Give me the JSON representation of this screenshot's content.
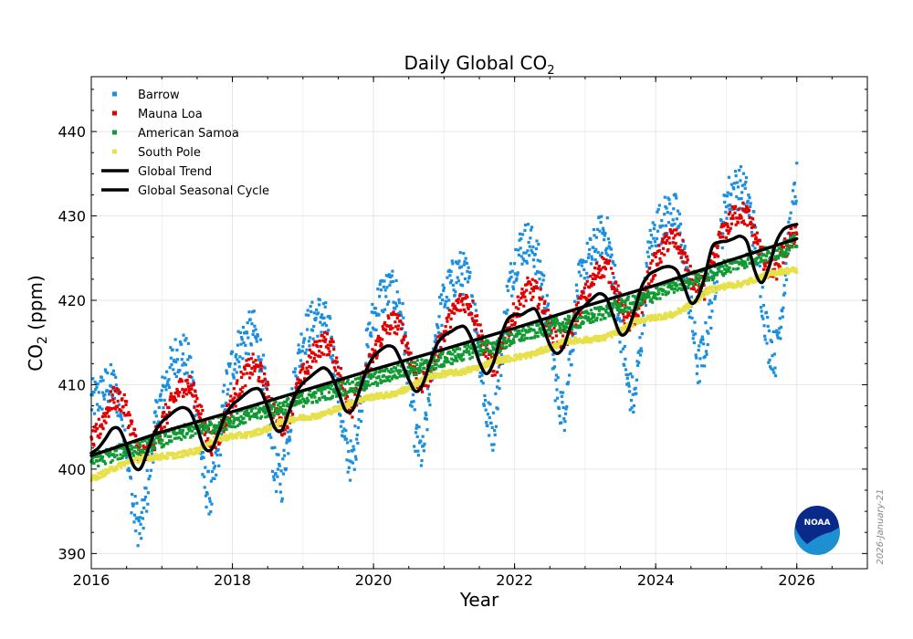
{
  "chart_data": {
    "type": "scatter",
    "title": "Daily Global CO",
    "title_subscript": "2",
    "xlabel": "Year",
    "ylabel_prefix": "CO",
    "ylabel_subscript": "2",
    "ylabel_suffix": " (ppm)",
    "xlim": [
      2016,
      2027
    ],
    "ylim": [
      388.2,
      446.5
    ],
    "xticks": [
      2016,
      2018,
      2020,
      2022,
      2024,
      2026
    ],
    "xtick_labels": [
      "2016",
      "2018",
      "2020",
      "2022",
      "2024",
      "2026"
    ],
    "yticks": [
      390,
      400,
      410,
      420,
      430,
      440
    ],
    "ytick_labels": [
      "390",
      "400",
      "410",
      "420",
      "430",
      "440"
    ],
    "grid": true,
    "legend_position": "top-left",
    "series": [
      {
        "name": "Barrow",
        "kind": "daily-points",
        "color": "#1a8fe0",
        "x": [
          2016.0,
          2016.1,
          2016.2,
          2016.3,
          2016.4,
          2016.5,
          2016.6,
          2016.7,
          2016.8,
          2016.9,
          2017.0,
          2017.1,
          2017.2,
          2017.3,
          2017.4,
          2017.5,
          2017.6,
          2017.7,
          2017.8,
          2017.9,
          2018.0,
          2018.1,
          2018.2,
          2018.3,
          2018.4,
          2018.5,
          2018.6,
          2018.7,
          2018.8,
          2018.9,
          2019.0,
          2019.1,
          2019.2,
          2019.3,
          2019.4,
          2019.5,
          2019.6,
          2019.7,
          2019.8,
          2019.9,
          2020.0,
          2020.1,
          2020.2,
          2020.3,
          2020.4,
          2020.5,
          2020.6,
          2020.7,
          2020.8,
          2020.9,
          2021.0,
          2021.1,
          2021.2,
          2021.3,
          2021.4,
          2021.5,
          2021.6,
          2021.7,
          2021.8,
          2021.9,
          2022.0,
          2022.1,
          2022.2,
          2022.3,
          2022.4,
          2022.5,
          2022.6,
          2022.7,
          2022.8,
          2022.9,
          2023.0,
          2023.1,
          2023.2,
          2023.3,
          2023.4,
          2023.5,
          2023.6,
          2023.7,
          2023.8,
          2023.9,
          2024.0,
          2024.1,
          2024.2,
          2024.3,
          2024.4,
          2024.5,
          2024.6,
          2024.7,
          2024.8,
          2024.9,
          2025.0,
          2025.1,
          2025.2,
          2025.3,
          2025.4,
          2025.5,
          2025.6,
          2025.7,
          2025.8,
          2025.9,
          2026.0
        ],
        "y": [
          408.0,
          408.6,
          409.6,
          410.0,
          408.0,
          402.5,
          395.0,
          392.5,
          398.0,
          405.0,
          408.5,
          411.5,
          413.5,
          413.8,
          412.0,
          406.5,
          398.5,
          396.5,
          402.0,
          409.0,
          412.5,
          414.5,
          415.8,
          416.5,
          413.5,
          407.0,
          400.0,
          398.5,
          404.5,
          411.5,
          415.5,
          417.0,
          418.2,
          418.0,
          415.0,
          409.0,
          402.5,
          400.5,
          406.5,
          414.0,
          418.0,
          420.5,
          421.0,
          420.8,
          418.5,
          411.0,
          403.5,
          401.5,
          409.5,
          417.0,
          420.0,
          422.0,
          423.5,
          423.0,
          420.5,
          414.0,
          406.5,
          404.5,
          412.5,
          420.5,
          424.5,
          426.5,
          427.0,
          425.5,
          422.0,
          416.0,
          409.0,
          406.5,
          414.0,
          421.5,
          424.0,
          425.5,
          427.5,
          428.0,
          423.5,
          417.0,
          410.0,
          408.0,
          416.0,
          425.5,
          428.5,
          429.5,
          430.5,
          430.0,
          425.5,
          418.5,
          412.0,
          414.5,
          420.0,
          426.0,
          432.0,
          433.0,
          433.5,
          432.0,
          428.0,
          421.0,
          415.0,
          413.5,
          420.0,
          428.0,
          434.0
        ]
      },
      {
        "name": "Mauna Loa",
        "kind": "daily-points",
        "color": "#e00000",
        "x": [
          2016.0,
          2016.1,
          2016.2,
          2016.3,
          2016.4,
          2016.5,
          2016.6,
          2016.7,
          2016.8,
          2016.9,
          2017.0,
          2017.1,
          2017.2,
          2017.3,
          2017.4,
          2017.5,
          2017.6,
          2017.7,
          2017.8,
          2017.9,
          2018.0,
          2018.1,
          2018.2,
          2018.3,
          2018.4,
          2018.5,
          2018.6,
          2018.7,
          2018.8,
          2018.9,
          2019.0,
          2019.1,
          2019.2,
          2019.3,
          2019.4,
          2019.5,
          2019.6,
          2019.7,
          2019.8,
          2019.9,
          2020.0,
          2020.1,
          2020.2,
          2020.3,
          2020.4,
          2020.5,
          2020.6,
          2020.7,
          2020.8,
          2020.9,
          2021.0,
          2021.1,
          2021.2,
          2021.3,
          2021.4,
          2021.5,
          2021.6,
          2021.7,
          2021.8,
          2021.9,
          2022.0,
          2022.1,
          2022.2,
          2022.3,
          2022.4,
          2022.5,
          2022.6,
          2022.7,
          2022.8,
          2022.9,
          2023.0,
          2023.1,
          2023.2,
          2023.3,
          2023.4,
          2023.5,
          2023.6,
          2023.7,
          2023.8,
          2023.9,
          2024.0,
          2024.1,
          2024.2,
          2024.3,
          2024.4,
          2024.5,
          2024.6,
          2024.7,
          2024.8,
          2024.9,
          2025.0,
          2025.1,
          2025.2,
          2025.3,
          2025.4,
          2025.5,
          2025.6,
          2025.7,
          2025.8,
          2025.9,
          2026.0
        ],
        "y": [
          402.8,
          404.5,
          406.5,
          408.3,
          408.3,
          407.0,
          404.0,
          401.5,
          401.8,
          403.5,
          405.5,
          407.0,
          408.8,
          410.0,
          409.8,
          408.0,
          405.0,
          403.0,
          403.8,
          406.0,
          408.0,
          409.8,
          411.5,
          412.3,
          411.3,
          409.0,
          406.5,
          405.0,
          406.5,
          409.0,
          411.0,
          412.8,
          414.3,
          415.0,
          414.5,
          412.0,
          409.0,
          407.5,
          409.0,
          411.5,
          413.5,
          415.5,
          417.0,
          417.5,
          416.5,
          414.0,
          411.0,
          410.0,
          411.5,
          414.0,
          416.0,
          418.0,
          419.5,
          420.0,
          419.0,
          416.5,
          413.5,
          412.0,
          413.5,
          416.5,
          418.5,
          420.0,
          421.5,
          421.0,
          419.5,
          417.0,
          415.5,
          415.5,
          416.5,
          419.0,
          420.5,
          422.0,
          424.0,
          424.0,
          422.5,
          419.5,
          417.5,
          417.5,
          419.5,
          422.5,
          424.5,
          426.0,
          427.5,
          427.0,
          425.5,
          422.5,
          421.5,
          421.5,
          424.0,
          427.0,
          428.5,
          430.0,
          430.5,
          430.0,
          428.0,
          425.5,
          423.5,
          423.5,
          425.5,
          427.0,
          428.5
        ]
      },
      {
        "name": "American Samoa",
        "kind": "daily-points",
        "color": "#119933",
        "x": [
          2016.0,
          2016.25,
          2016.5,
          2016.75,
          2017.0,
          2017.25,
          2017.5,
          2017.75,
          2018.0,
          2018.25,
          2018.5,
          2018.75,
          2019.0,
          2019.25,
          2019.5,
          2019.75,
          2020.0,
          2020.25,
          2020.5,
          2020.75,
          2021.0,
          2021.25,
          2021.5,
          2021.75,
          2022.0,
          2022.25,
          2022.5,
          2022.75,
          2023.0,
          2023.25,
          2023.5,
          2023.75,
          2024.0,
          2024.25,
          2024.5,
          2024.75,
          2025.0,
          2025.25,
          2025.5,
          2025.75,
          2026.0
        ],
        "y": [
          401.0,
          401.6,
          402.3,
          402.7,
          403.5,
          404.2,
          404.8,
          405.2,
          405.8,
          406.4,
          407.0,
          407.4,
          408.3,
          408.9,
          409.5,
          409.8,
          410.6,
          411.3,
          411.9,
          412.2,
          413.0,
          413.7,
          414.3,
          414.6,
          415.6,
          416.3,
          416.9,
          417.2,
          417.8,
          418.6,
          419.3,
          419.8,
          420.8,
          421.7,
          422.5,
          423.0,
          424.0,
          424.7,
          425.3,
          425.8,
          427.0
        ]
      },
      {
        "name": "South Pole",
        "kind": "daily-points",
        "color": "#e6e04a",
        "x": [
          2016.0,
          2016.25,
          2016.5,
          2016.75,
          2017.0,
          2017.25,
          2017.5,
          2017.75,
          2018.0,
          2018.25,
          2018.5,
          2018.75,
          2019.0,
          2019.25,
          2019.5,
          2019.75,
          2020.0,
          2020.25,
          2020.5,
          2020.75,
          2021.0,
          2021.25,
          2021.5,
          2021.75,
          2022.0,
          2022.25,
          2022.5,
          2022.75,
          2023.0,
          2023.25,
          2023.5,
          2023.75,
          2024.0,
          2024.25,
          2024.5,
          2024.75,
          2025.0,
          2025.25,
          2025.5,
          2025.75,
          2026.0
        ],
        "y": [
          398.8,
          399.8,
          400.8,
          401.3,
          401.5,
          401.7,
          402.2,
          403.5,
          403.9,
          404.1,
          404.8,
          405.8,
          406.1,
          406.4,
          407.2,
          408.1,
          408.6,
          408.8,
          409.6,
          410.8,
          411.3,
          411.5,
          412.1,
          412.9,
          413.2,
          413.6,
          414.4,
          415.2,
          415.3,
          415.5,
          416.4,
          417.6,
          418.0,
          418.3,
          419.5,
          421.2,
          421.7,
          422.0,
          422.8,
          423.4,
          423.6
        ]
      },
      {
        "name": "Global Trend",
        "kind": "line",
        "color": "#000000",
        "x": [
          2016.0,
          2017.0,
          2018.0,
          2019.0,
          2020.0,
          2021.0,
          2022.0,
          2023.0,
          2024.0,
          2025.0,
          2026.0
        ],
        "y": [
          401.6,
          404.4,
          406.8,
          409.3,
          411.8,
          414.2,
          416.7,
          419.3,
          421.8,
          424.6,
          427.3
        ]
      },
      {
        "name": "Global Seasonal Cycle",
        "kind": "line",
        "color": "#000000",
        "x": [
          2016.0,
          2016.1,
          2016.2,
          2016.3,
          2016.4,
          2016.5,
          2016.6,
          2016.7,
          2016.8,
          2016.9,
          2017.0,
          2017.1,
          2017.2,
          2017.3,
          2017.4,
          2017.5,
          2017.6,
          2017.7,
          2017.8,
          2017.9,
          2018.0,
          2018.1,
          2018.2,
          2018.3,
          2018.4,
          2018.5,
          2018.6,
          2018.7,
          2018.8,
          2018.9,
          2019.0,
          2019.1,
          2019.2,
          2019.3,
          2019.4,
          2019.5,
          2019.6,
          2019.7,
          2019.8,
          2019.9,
          2020.0,
          2020.1,
          2020.2,
          2020.3,
          2020.4,
          2020.5,
          2020.6,
          2020.7,
          2020.8,
          2020.9,
          2021.0,
          2021.1,
          2021.2,
          2021.3,
          2021.4,
          2021.5,
          2021.6,
          2021.7,
          2021.8,
          2021.9,
          2022.0,
          2022.1,
          2022.2,
          2022.3,
          2022.4,
          2022.5,
          2022.6,
          2022.7,
          2022.8,
          2022.9,
          2023.0,
          2023.1,
          2023.2,
          2023.3,
          2023.4,
          2023.5,
          2023.6,
          2023.7,
          2023.8,
          2023.9,
          2024.0,
          2024.1,
          2024.2,
          2024.3,
          2024.4,
          2024.5,
          2024.6,
          2024.7,
          2024.8,
          2024.9,
          2025.0,
          2025.1,
          2025.2,
          2025.3,
          2025.4,
          2025.5,
          2025.6,
          2025.7,
          2025.8,
          2025.9,
          2026.0
        ],
        "y": [
          401.9,
          402.5,
          403.6,
          404.8,
          404.7,
          402.8,
          400.4,
          400.1,
          402.2,
          404.4,
          405.6,
          406.3,
          407.0,
          407.3,
          406.8,
          404.9,
          402.6,
          402.3,
          404.2,
          406.4,
          407.6,
          408.3,
          409.0,
          409.5,
          409.3,
          407.3,
          404.9,
          404.6,
          406.8,
          409.0,
          410.2,
          410.9,
          411.6,
          412.0,
          411.2,
          409.2,
          407.0,
          407.0,
          409.2,
          411.8,
          413.3,
          414.1,
          414.6,
          414.3,
          412.6,
          410.6,
          409.2,
          410.1,
          412.6,
          414.8,
          415.8,
          416.3,
          416.8,
          416.8,
          415.2,
          412.7,
          411.3,
          412.6,
          415.6,
          417.7,
          418.3,
          418.3,
          418.8,
          418.9,
          417.0,
          414.7,
          413.7,
          414.6,
          417.1,
          418.6,
          419.4,
          420.2,
          420.8,
          420.3,
          418.1,
          416.0,
          416.4,
          418.8,
          421.6,
          423.0,
          423.5,
          423.9,
          424.0,
          423.5,
          421.7,
          419.7,
          420.4,
          423.0,
          426.3,
          426.9,
          427.0,
          427.3,
          427.6,
          426.8,
          423.6,
          422.1,
          423.8,
          426.7,
          428.3,
          428.8,
          429.0
        ]
      }
    ]
  },
  "stamp": "2026-January-21",
  "logo": {
    "text": "NOAA",
    "color_top": "#0a2a8a",
    "color_bottom": "#1e8fd0"
  }
}
